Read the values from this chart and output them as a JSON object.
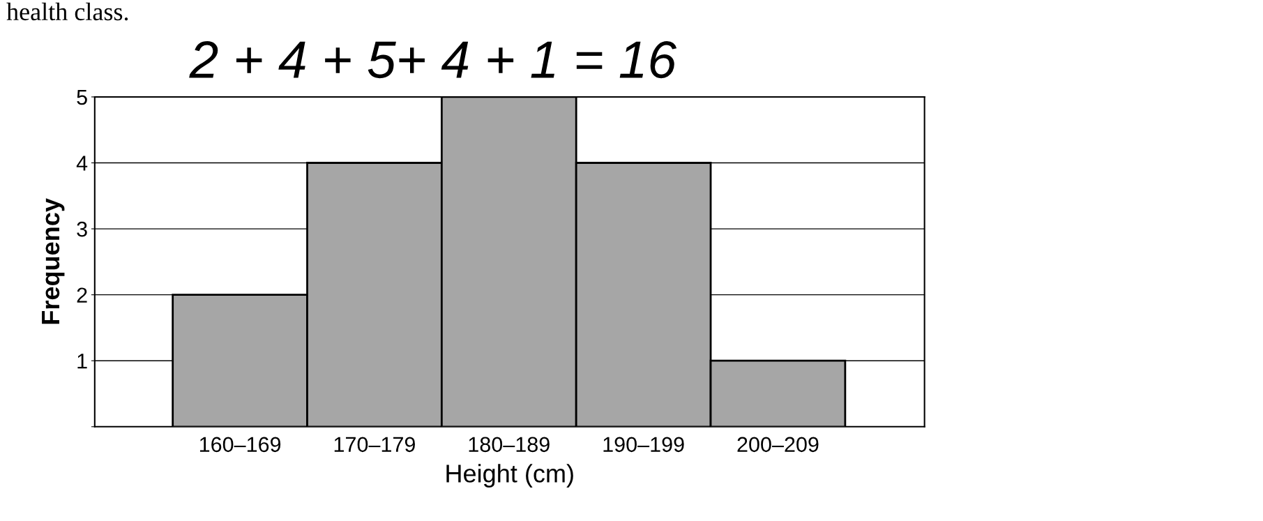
{
  "chart_data": {
    "type": "bar",
    "categories": [
      "160–169",
      "170–179",
      "180–189",
      "190–199",
      "200–209"
    ],
    "values": [
      2,
      4,
      5,
      4,
      1
    ],
    "color": "#a6a6a6",
    "xlabel": "Height (cm)",
    "ylabel": "Frequency",
    "ylim": [
      0,
      5
    ],
    "yticks": [
      {
        "value": 0,
        "label": null
      },
      1,
      2,
      3,
      4,
      5
    ],
    "grid": "y",
    "annotations": [
      "health class.",
      "2 + 4 + 5+ 4 + 1 = 16"
    ]
  }
}
